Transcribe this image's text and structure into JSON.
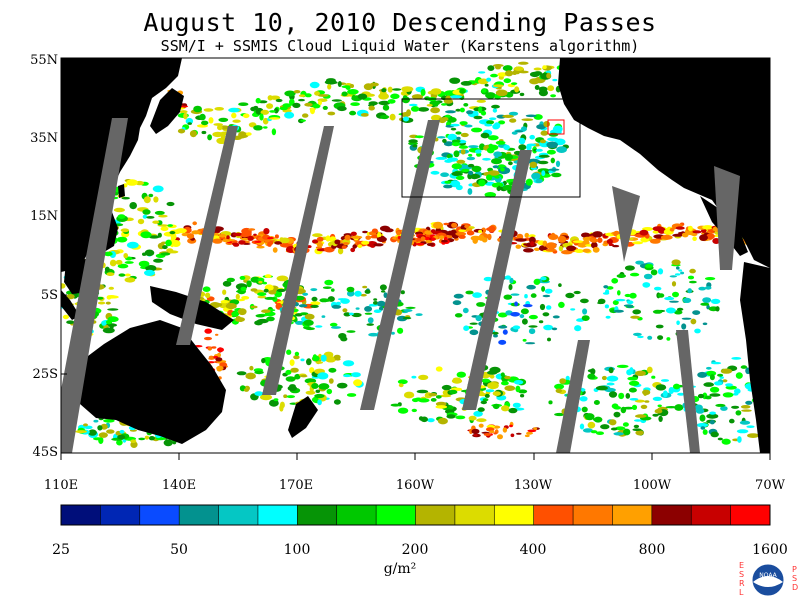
{
  "title": "August 10, 2010  Descending Passes",
  "subtitle": "SSM/I + SSMIS Cloud Liquid Water (Karstens algorithm)",
  "lat_labels": [
    "55N",
    "35N",
    "15N",
    "5S",
    "25S",
    "45S"
  ],
  "lon_labels": [
    "110E",
    "140E",
    "170E",
    "160W",
    "130W",
    "100W",
    "70W"
  ],
  "colorbar": {
    "labels": [
      "25",
      "50",
      "100",
      "200",
      "400",
      "800",
      "1600"
    ],
    "colors": [
      "#000e7a",
      "#0026b4",
      "#0a4bff",
      "#03928f",
      "#05c7c4",
      "#00ffff",
      "#069406",
      "#00c800",
      "#00ff00",
      "#b4b400",
      "#dcdc00",
      "#ffff00",
      "#ff5000",
      "#ff7800",
      "#ffa000",
      "#8c0000",
      "#c80000",
      "#ff0000"
    ],
    "units": "g/m²"
  },
  "colors": {
    "land": "#000000",
    "no_data": "#666666",
    "ocean_clear": "#ffffff"
  },
  "logo": {
    "left_letters": "ESRL",
    "right_letters": "PSD",
    "center_text": "NOAA"
  }
}
